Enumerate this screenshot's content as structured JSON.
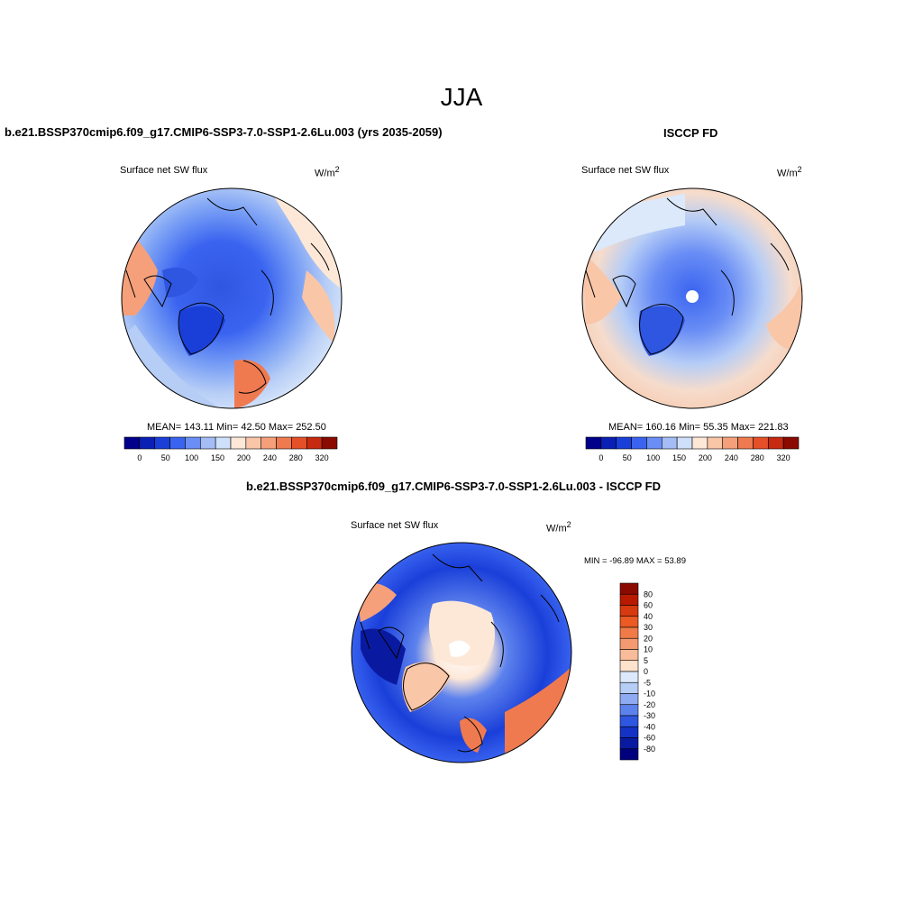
{
  "title": "JJA",
  "panels": {
    "model": {
      "header": "b.e21.BSSP370cmip6.f09_g17.CMIP6-SSP3-7.0-SSP1-2.6Lu.003 (yrs 2035-2059)",
      "variable": "Surface net SW flux",
      "unit_base": "W/m",
      "unit_exp": "2",
      "stats": "MEAN= 143.11  Min=  42.50  Max= 252.50"
    },
    "obs": {
      "header": "ISCCP FD",
      "variable": "Surface net SW flux",
      "unit_base": "W/m",
      "unit_exp": "2",
      "stats": "MEAN= 160.16  Min=  55.35  Max= 221.83"
    },
    "diff": {
      "header": "b.e21.BSSP370cmip6.f09_g17.CMIP6-SSP3-7.0-SSP1-2.6Lu.003 - ISCCP FD",
      "variable": "Surface net SW flux",
      "unit_base": "W/m",
      "unit_exp": "2",
      "minmax": "MIN = -96.89 MAX =  53.89"
    }
  },
  "colorbars": {
    "horizontal_colors": [
      "#00008b",
      "#0a1fb4",
      "#1a3fd9",
      "#3a64f0",
      "#6a8ef5",
      "#a4bdf7",
      "#cfe0fb",
      "#fde8d8",
      "#f9c6a8",
      "#f5a07a",
      "#f07a50",
      "#e55028",
      "#c62a10",
      "#8b0a00"
    ],
    "horizontal_labels": [
      "0",
      "50",
      "100",
      "150",
      "200",
      "240",
      "280",
      "320"
    ],
    "vertical_colors_top_down": [
      "#8b0a00",
      "#b81a00",
      "#d63a0e",
      "#ea5a22",
      "#f07a48",
      "#f49a72",
      "#f8bc9a",
      "#fde3cc",
      "#dce9fb",
      "#b6cdf6",
      "#8eaaf2",
      "#5d82ed",
      "#2f56e0",
      "#1432c4",
      "#0a1aa0",
      "#00007f"
    ],
    "vertical_labels_top_down": [
      "80",
      "60",
      "40",
      "30",
      "20",
      "10",
      "5",
      "0",
      "-5",
      "-10",
      "-20",
      "-30",
      "-40",
      "-60",
      "-80"
    ]
  }
}
